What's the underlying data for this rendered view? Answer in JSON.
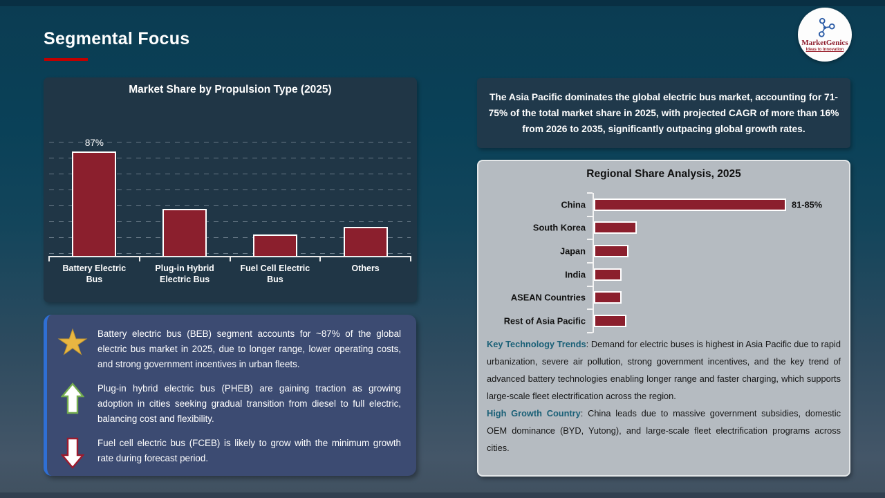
{
  "slide_title": "Segmental Focus",
  "logo": {
    "brand": "MarketGenics",
    "tagline": "Ideas to Innovation"
  },
  "highlight_box": {
    "text": "The Asia Pacific dominates the global electric bus market, accounting for 71-75% of the total market share in 2025, with projected CAGR of more than 16% from 2026 to 2035, significantly outpacing global growth rates."
  },
  "chart_data": [
    {
      "type": "bar",
      "orientation": "vertical",
      "title": "Market Share by Propulsion Type (2025)",
      "categories": [
        "Battery Electric Bus",
        "Plug-in Hybrid Electric Bus",
        "Fuel Cell Electric Bus",
        "Others"
      ],
      "values": [
        87,
        39,
        18,
        24
      ],
      "data_labels": [
        "87%",
        "",
        "",
        ""
      ],
      "ylim": [
        0,
        100
      ],
      "grid": "horizontal-dashed",
      "legend": "none",
      "bar_color": "#8B1F2D",
      "note": "Only the Battery Electric Bus bar carries a printed value (87%); other bar heights are visual estimates from the chart."
    },
    {
      "type": "bar",
      "orientation": "horizontal",
      "title": "Regional Share Analysis, 2025",
      "categories": [
        "China",
        "South Korea",
        "Japan",
        "India",
        "ASEAN Countries",
        "Rest of Asia Pacific"
      ],
      "values": [
        83,
        18.5,
        15,
        12,
        12,
        14
      ],
      "data_labels": [
        "81-85%",
        "",
        "",
        "",
        "",
        ""
      ],
      "xlim": [
        0,
        100
      ],
      "grid": "off",
      "legend": "none",
      "bar_color": "#8B1F2D",
      "note": "Only China carries a printed range label (81-85%); other bar lengths are visual estimates from the chart."
    }
  ],
  "callouts": {
    "items": [
      {
        "icon": "star-icon",
        "text": "Battery electric bus (BEB) segment accounts for ~87% of the global electric bus market in 2025, due to longer range, lower operating costs, and strong government incentives in urban fleets."
      },
      {
        "icon": "up-arrow-icon",
        "text": "Plug-in hybrid electric bus (PHEB) are gaining traction as growing adoption in cities seeking gradual transition from diesel to full electric, balancing cost and flexibility."
      },
      {
        "icon": "down-arrow-icon",
        "text": "Fuel cell electric bus (FCEB) is likely to grow with the minimum growth rate during forecast period."
      }
    ]
  },
  "insights": {
    "paragraphs": [
      {
        "lead": "Key Technology Trends",
        "rest": ": Demand for electric buses is highest in Asia Pacific due to rapid urbanization, severe air pollution, strong government incentives, and the key trend of advanced battery technologies enabling longer range and faster charging, which supports large-scale fleet electrification across the region."
      },
      {
        "lead": "High Growth Country",
        "rest": ": China leads due to massive government subsidies, domestic OEM dominance (BYD, Yutong), and large-scale fleet electrification programs across cities."
      }
    ]
  },
  "colors": {
    "bar_red": "#8B1F2D",
    "accent_red": "#C00000",
    "panel_navy": "#203646",
    "highlight_navy": "#20394B",
    "gray_panel": "#B5BBC1",
    "teal_lead": "#1A6077",
    "callout_blue": "#3C4B72",
    "callout_accent": "#2F6FD4",
    "star_gold": "#E9B642",
    "arrow_green": "#74AD4F",
    "arrow_red": "#9C1B2E",
    "logo_blue": "#2A5BA6"
  }
}
